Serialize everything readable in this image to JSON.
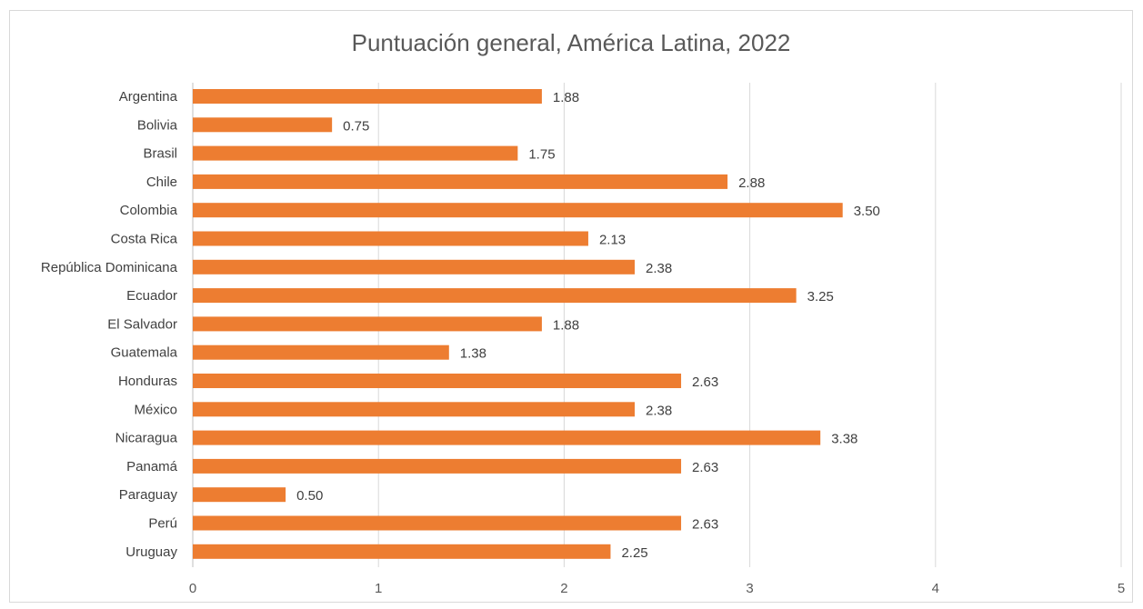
{
  "chart_data": {
    "type": "bar",
    "orientation": "horizontal",
    "title": "Puntuación general, América Latina, 2022",
    "xlabel": "",
    "ylabel": "",
    "categories": [
      "Argentina",
      "Bolivia",
      "Brasil",
      "Chile",
      "Colombia",
      "Costa Rica",
      "República Dominicana",
      "Ecuador",
      "El Salvador",
      "Guatemala",
      "Honduras",
      "México",
      "Nicaragua",
      "Panamá",
      "Paraguay",
      "Perú",
      "Uruguay"
    ],
    "values": [
      1.88,
      0.75,
      1.75,
      2.88,
      3.5,
      2.13,
      2.38,
      3.25,
      1.88,
      1.38,
      2.63,
      2.38,
      3.38,
      2.63,
      0.5,
      2.63,
      2.25
    ],
    "data_labels": [
      "1.88",
      "0.75",
      "1.75",
      "2.88",
      "3.50",
      "2.13",
      "2.38",
      "3.25",
      "1.88",
      "1.38",
      "2.63",
      "2.38",
      "3.38",
      "2.63",
      "0.50",
      "2.63",
      "2.25"
    ],
    "xlim": [
      0,
      5
    ],
    "x_ticks": [
      "0",
      "1",
      "2",
      "3",
      "4",
      "5"
    ],
    "grid": true,
    "legend": "none",
    "bar_color": "#ED7D31"
  }
}
